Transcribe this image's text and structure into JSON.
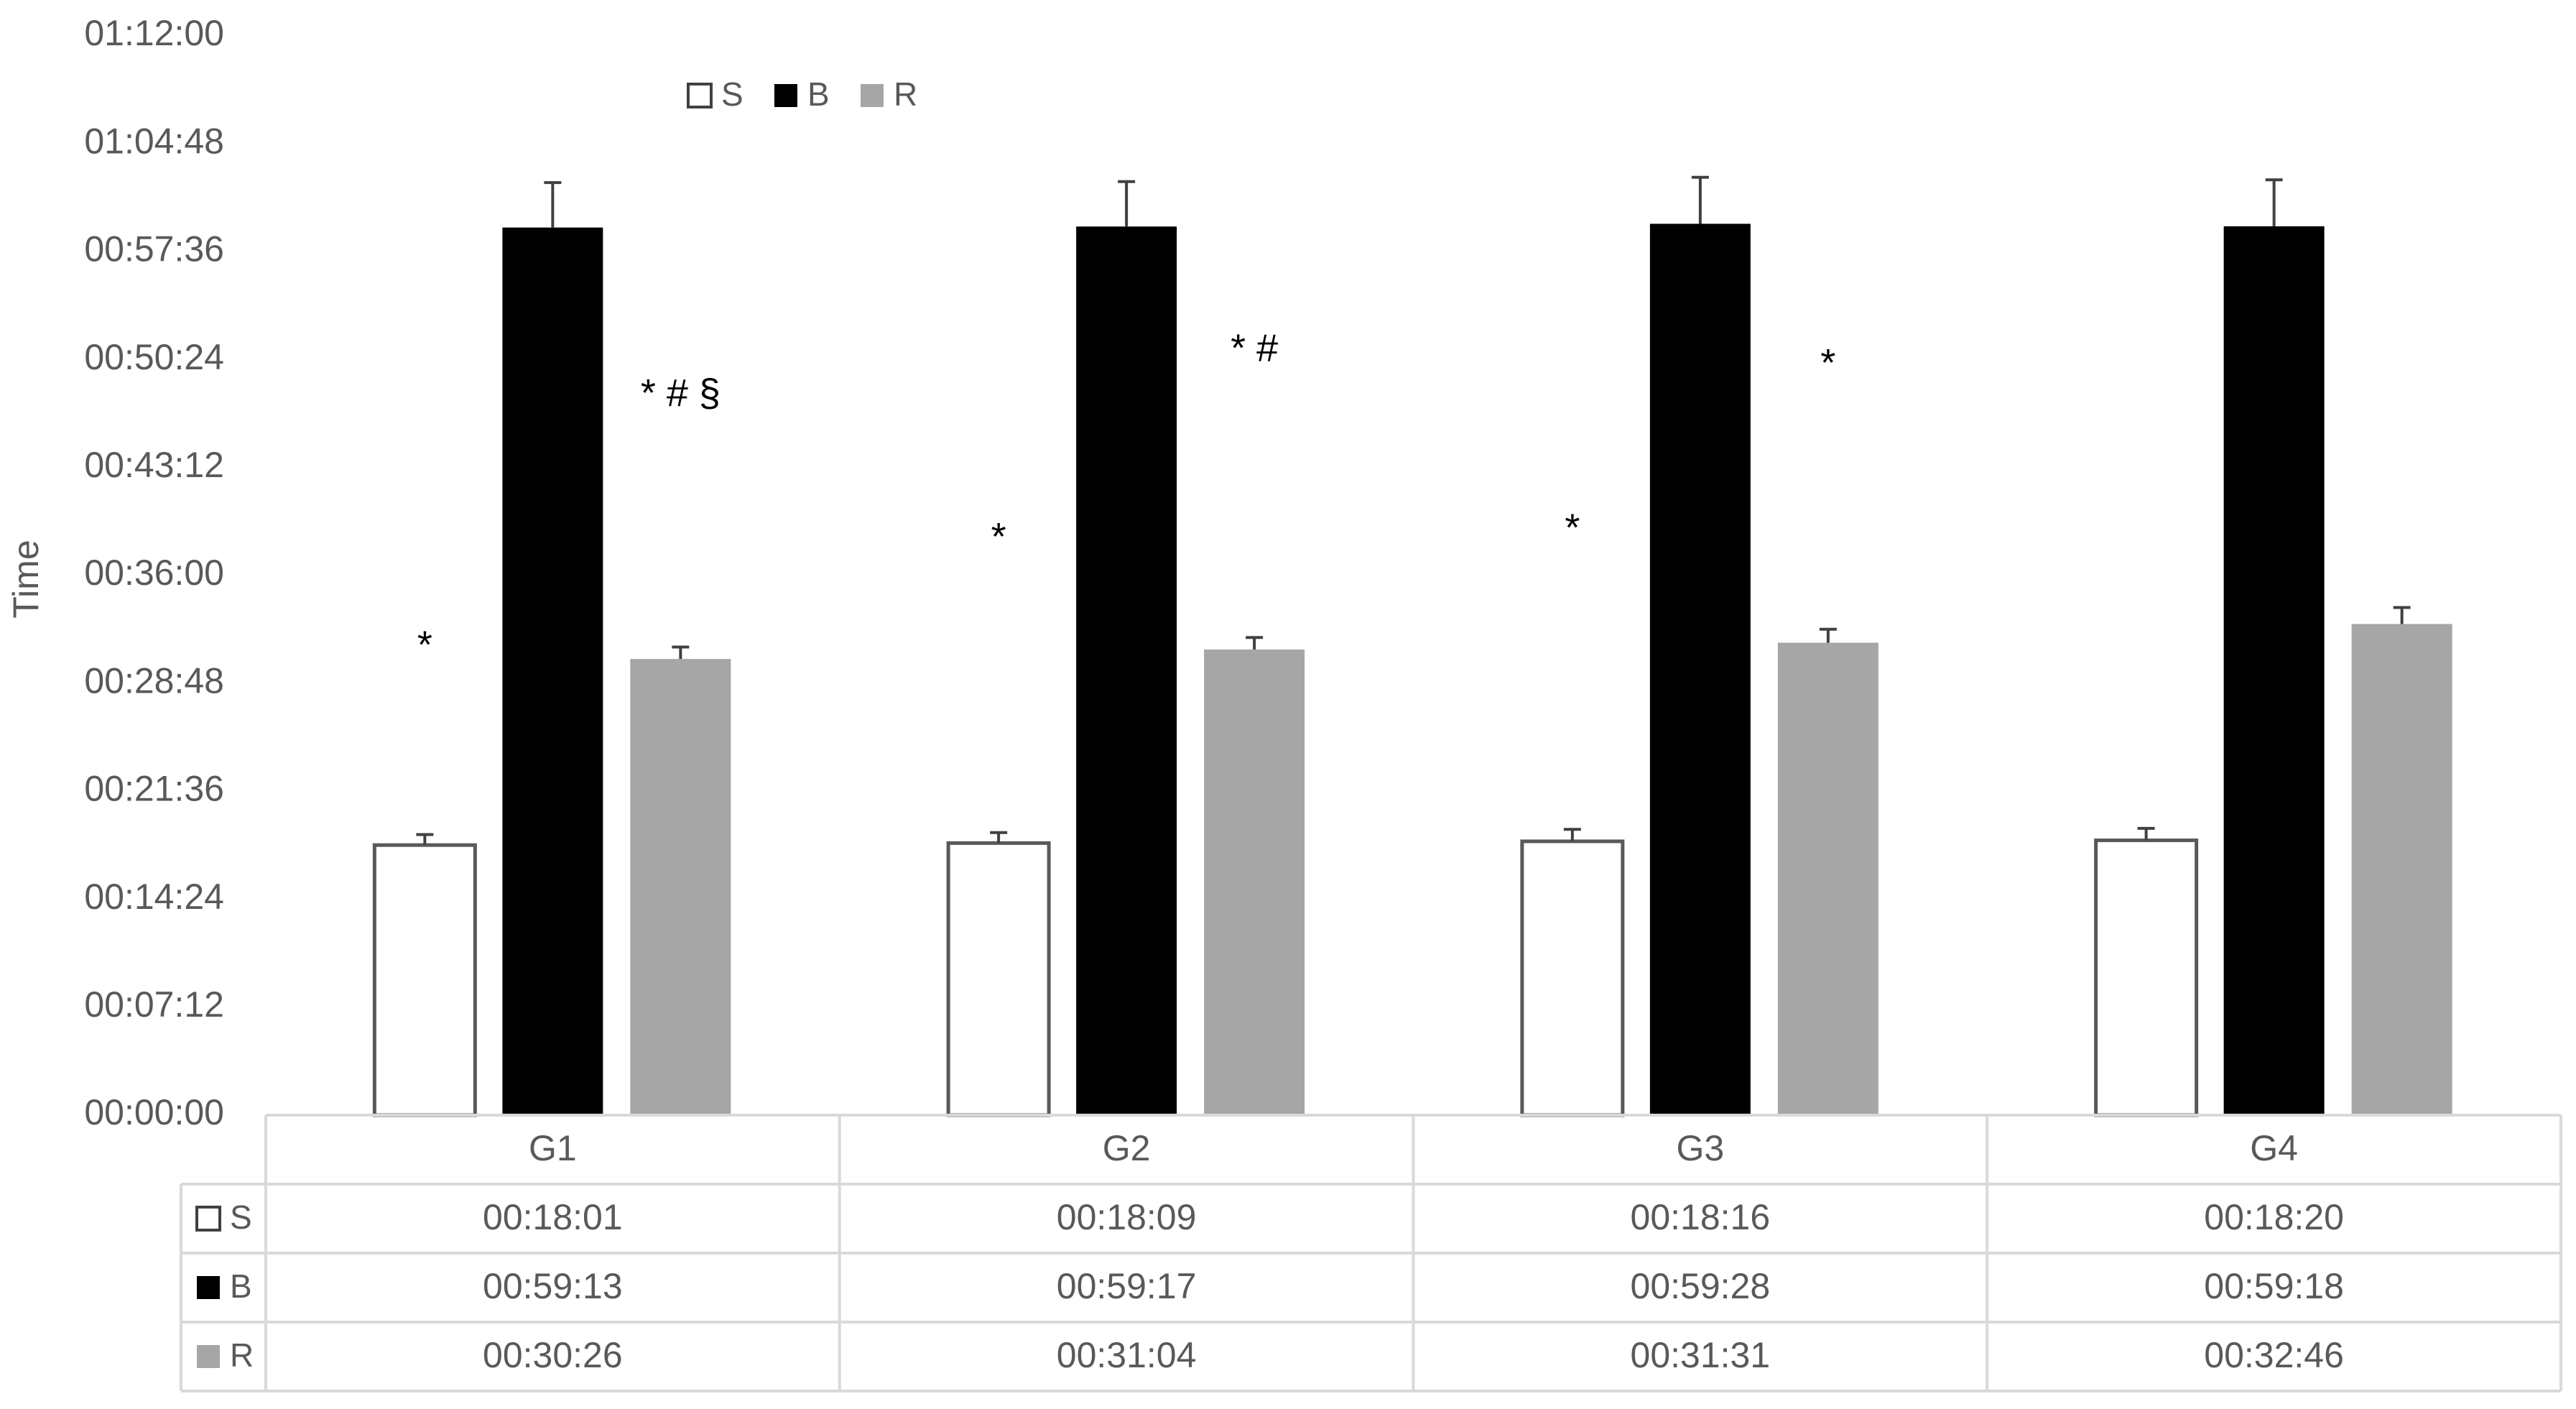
{
  "chart_data": {
    "type": "bar",
    "title": "",
    "xlabel": "",
    "ylabel": "Time",
    "y_unit": "hh:mm:ss",
    "ylim": [
      "00:00:00",
      "01:12:00"
    ],
    "yticks": [
      "00:00:00",
      "00:07:12",
      "00:14:24",
      "00:21:36",
      "00:28:48",
      "00:36:00",
      "00:43:12",
      "00:50:24",
      "00:57:36",
      "01:04:48",
      "01:12:00"
    ],
    "grid": false,
    "legend_position": "top",
    "categories": [
      "G1",
      "G2",
      "G3",
      "G4"
    ],
    "series": [
      {
        "name": "S",
        "color": "#ffffff",
        "stroke": "#595959",
        "values": [
          "00:18:01",
          "00:18:09",
          "00:18:16",
          "00:18:20"
        ],
        "error_plus": [
          "00:00:42",
          "00:00:42",
          "00:00:48",
          "00:00:48"
        ]
      },
      {
        "name": "B",
        "color": "#000000",
        "stroke": "#000000",
        "values": [
          "00:59:13",
          "00:59:17",
          "00:59:28",
          "00:59:18"
        ],
        "error_plus": [
          "00:03:00",
          "00:03:00",
          "00:03:06",
          "00:03:06"
        ]
      },
      {
        "name": "R",
        "color": "#a6a6a6",
        "stroke": "#a6a6a6",
        "values": [
          "00:30:26",
          "00:31:04",
          "00:31:31",
          "00:32:46"
        ],
        "error_plus": [
          "00:00:48",
          "00:00:48",
          "00:00:54",
          "00:01:06"
        ]
      }
    ],
    "annotations": [
      {
        "category": "G1",
        "series": "S",
        "text": "*",
        "value": "00:31:12"
      },
      {
        "category": "G1",
        "series": "R",
        "text": "*   # §",
        "value": "00:48:00"
      },
      {
        "category": "G2",
        "series": "S",
        "text": "*",
        "value": "00:38:24"
      },
      {
        "category": "G2",
        "series": "R",
        "text": "* #",
        "value": "00:51:00"
      },
      {
        "category": "G3",
        "series": "S",
        "text": "*",
        "value": "00:39:00"
      },
      {
        "category": "G3",
        "series": "R",
        "text": "*",
        "value": "00:50:00"
      }
    ]
  }
}
